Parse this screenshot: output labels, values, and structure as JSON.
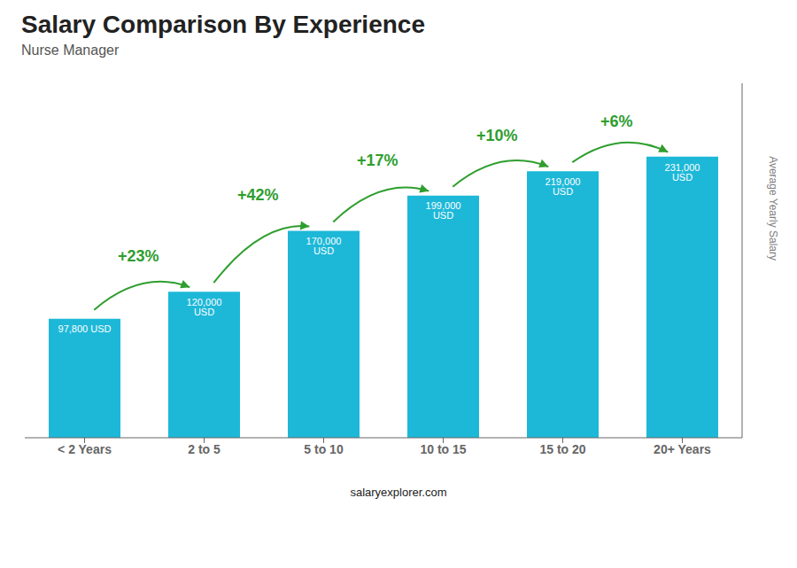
{
  "chart_data": {
    "type": "bar",
    "title": "Salary Comparison By Experience",
    "subtitle": "Nurse Manager",
    "categories": [
      "< 2 Years",
      "2 to 5",
      "5 to 10",
      "10 to 15",
      "15 to 20",
      "20+ Years"
    ],
    "values": [
      97800,
      120000,
      170000,
      199000,
      219000,
      231000
    ],
    "value_labels": [
      "97,800 USD",
      "120,000 USD",
      "170,000 USD",
      "199,000 USD",
      "219,000 USD",
      "231,000 USD"
    ],
    "annotations": [
      "+23%",
      "+42%",
      "+17%",
      "+10%",
      "+6%"
    ],
    "color": "#1db8d8",
    "ylabel": "Average Yearly Salary",
    "watermark": "salaryexplorer.com",
    "ylim": [
      0,
      291200
    ],
    "tick_labels": "x",
    "grid": false
  }
}
